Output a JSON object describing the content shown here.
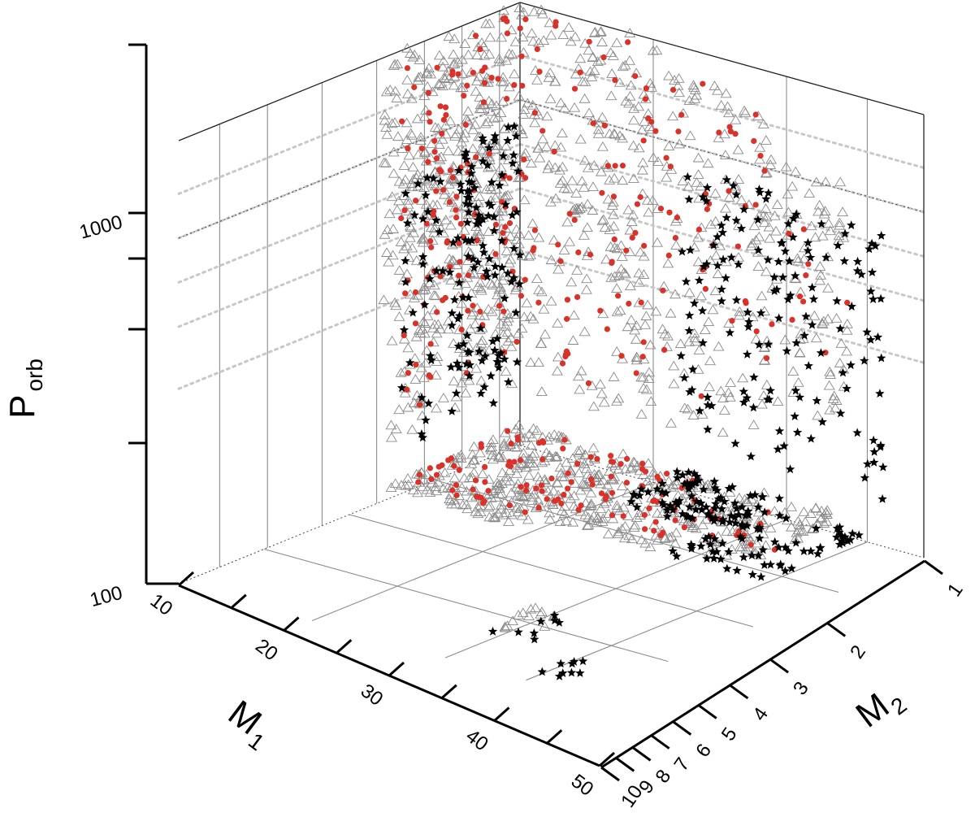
{
  "chart_data": {
    "type": "scatter",
    "projection": "3d",
    "title": "",
    "axes": {
      "x": {
        "title": "M",
        "subscript": "1",
        "range": [
          10,
          50
        ],
        "ticks": [
          10,
          20,
          30,
          40,
          50
        ],
        "tick_labels": [
          "10",
          "20",
          "30",
          "40",
          "50"
        ]
      },
      "y": {
        "title": "M",
        "subscript": "2",
        "range": [
          1,
          10
        ],
        "scale": "log",
        "ticks": [
          1,
          2,
          3,
          4,
          5,
          6,
          7,
          8,
          9,
          10
        ],
        "tick_labels": [
          "1",
          "2",
          "3",
          "4",
          "5",
          "6",
          "7",
          "8",
          "9",
          "10"
        ]
      },
      "z": {
        "title": "P",
        "subscript": "orb",
        "range": [
          100,
          3000
        ],
        "scale": "log",
        "ticks": [
          100,
          1000
        ],
        "tick_labels": [
          "100",
          "1000"
        ]
      }
    },
    "grid": true,
    "legend": "none",
    "colors": {
      "triangle": "#8a8a8a",
      "circle": "#d8322a",
      "star": "#000000",
      "axis": "#000000",
      "grid": "#8c8c8c",
      "dotted": "#c8c8c8"
    },
    "series": [
      {
        "marker": "triangle-open",
        "color": "#8a8a8a",
        "clusters": [
          {
            "m1": [
              10,
              26
            ],
            "m2": [
              1.0,
              2.2
            ],
            "porb": [
              150,
              3000
            ],
            "n": 260
          },
          {
            "m1": [
              11,
              24
            ],
            "m2": [
              2.0,
              4.2
            ],
            "porb": [
              160,
              2500
            ],
            "n": 150
          },
          {
            "m1": [
              10,
              22
            ],
            "m2": [
              4.0,
              6.5
            ],
            "porb": [
              220,
              1500
            ],
            "n": 90
          },
          {
            "m1": [
              38,
              43
            ],
            "m2": [
              4.2,
              5.2
            ],
            "porb": [
              150,
              300
            ],
            "n": 14
          }
        ]
      },
      {
        "marker": "circle-filled",
        "color": "#d8322a",
        "clusters": [
          {
            "m1": [
              10,
              24
            ],
            "m2": [
              1.0,
              2.1
            ],
            "porb": [
              180,
              3000
            ],
            "n": 70
          },
          {
            "m1": [
              11,
              22
            ],
            "m2": [
              2.0,
              4.0
            ],
            "porb": [
              200,
              2500
            ],
            "n": 40
          },
          {
            "m1": [
              12,
              20
            ],
            "m2": [
              4.0,
              6.5
            ],
            "porb": [
              300,
              2200
            ],
            "n": 12
          }
        ]
      },
      {
        "marker": "star-filled",
        "color": "#000000",
        "clusters": [
          {
            "m1": [
              10,
              18
            ],
            "m2": [
              2.5,
              4.5
            ],
            "porb": [
              150,
              1200
            ],
            "n": 80
          },
          {
            "m1": [
              12,
              24
            ],
            "m2": [
              4.5,
              8.0
            ],
            "porb": [
              140,
              1100
            ],
            "n": 70
          },
          {
            "m1": [
              38,
              44
            ],
            "m2": [
              4.2,
              5.5
            ],
            "porb": [
              150,
              250
            ],
            "n": 8
          },
          {
            "m1": [
              44,
              48
            ],
            "m2": [
              7.0,
              9.0
            ],
            "porb": [
              150,
              700
            ],
            "n": 9
          }
        ]
      }
    ]
  }
}
